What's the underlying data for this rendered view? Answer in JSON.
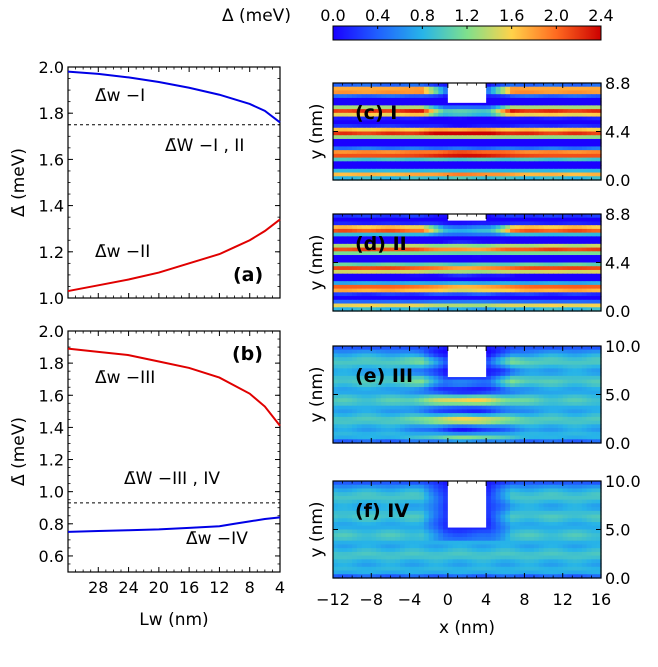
{
  "colors": {
    "blue": "#0000e6",
    "red": "#e00000",
    "colormap": [
      "#1a00ff",
      "#2060ff",
      "#27b4e8",
      "#7fe08c",
      "#ffd24a",
      "#ff6a20",
      "#cc0000"
    ]
  },
  "colorbar": {
    "label": "Δ (meV)",
    "ticks": [
      "0.0",
      "0.4",
      "0.8",
      "1.2",
      "1.6",
      "2.0",
      "2.4"
    ],
    "range": [
      0.0,
      2.4
    ]
  },
  "chart_data": [
    {
      "id": "a",
      "type": "line",
      "panel_label": "(a)",
      "ylabel": "Δ̄ (meV)",
      "xlim": [
        32,
        4
      ],
      "ylim": [
        1.0,
        2.0
      ],
      "yticks": [
        "1.0",
        "1.2",
        "1.4",
        "1.6",
        "1.8",
        "2.0"
      ],
      "ytick_values": [
        1.0,
        1.2,
        1.4,
        1.6,
        1.8,
        2.0
      ],
      "series": [
        {
          "name": "Δ̄w −I",
          "color": "blue",
          "x": [
            32,
            28,
            24,
            20,
            16,
            12,
            10,
            8,
            6,
            4
          ],
          "y": [
            1.98,
            1.97,
            1.955,
            1.935,
            1.91,
            1.88,
            1.86,
            1.84,
            1.81,
            1.76
          ]
        },
        {
          "name": "Δ̄w −II",
          "color": "red",
          "x": [
            32,
            28,
            24,
            20,
            16,
            12,
            10,
            8,
            6,
            4
          ],
          "y": [
            1.03,
            1.055,
            1.08,
            1.11,
            1.15,
            1.19,
            1.22,
            1.25,
            1.29,
            1.34
          ]
        },
        {
          "name": "Δ̄W −I , II",
          "style": "dashed",
          "color": "black",
          "x": [
            32,
            4
          ],
          "y": [
            1.75,
            1.75
          ]
        }
      ]
    },
    {
      "id": "b",
      "type": "line",
      "panel_label": "(b)",
      "xlabel": "Lw (nm)",
      "ylabel": "Δ̄ (meV)",
      "xlim": [
        32,
        4
      ],
      "ylim": [
        0.5,
        2.0
      ],
      "xticks": [
        "28",
        "24",
        "20",
        "16",
        "12",
        "8",
        "4"
      ],
      "xtick_values": [
        28,
        24,
        20,
        16,
        12,
        8,
        4
      ],
      "yticks": [
        "0.6",
        "0.8",
        "1.0",
        "1.2",
        "1.4",
        "1.6",
        "1.8",
        "2.0"
      ],
      "ytick_values": [
        0.6,
        0.8,
        1.0,
        1.2,
        1.4,
        1.6,
        1.8,
        2.0
      ],
      "series": [
        {
          "name": "Δ̄w −III",
          "color": "red",
          "x": [
            32,
            28,
            24,
            20,
            16,
            12,
            10,
            8,
            6,
            4
          ],
          "y": [
            1.89,
            1.87,
            1.85,
            1.81,
            1.77,
            1.71,
            1.66,
            1.61,
            1.53,
            1.41
          ]
        },
        {
          "name": "Δ̄w −IV",
          "color": "blue",
          "x": [
            32,
            28,
            24,
            20,
            16,
            12,
            10,
            8,
            6,
            4
          ],
          "y": [
            0.75,
            0.755,
            0.76,
            0.765,
            0.775,
            0.785,
            0.8,
            0.815,
            0.83,
            0.84
          ]
        },
        {
          "name": "Δ̄W −III , IV",
          "style": "dashed",
          "color": "black",
          "x": [
            32,
            4
          ],
          "y": [
            0.93,
            0.93
          ]
        }
      ]
    },
    {
      "id": "c",
      "type": "heatmap",
      "panel_label": "(c) I",
      "ylabel": "y (nm)",
      "ylim": [
        0,
        8.8
      ],
      "yticks": [
        "0.0",
        "4.4",
        "8.8"
      ],
      "ytick_values": [
        0.0,
        4.4,
        8.8
      ],
      "xlim": [
        -12,
        16
      ],
      "notch_x": [
        0,
        4
      ],
      "notch_y": 7.0,
      "base": 0.8,
      "stripe_amp": 1.4,
      "stripes": 4.5,
      "center_bump": 0.35
    },
    {
      "id": "d",
      "type": "heatmap",
      "panel_label": "(d) II",
      "ylabel": "y (nm)",
      "ylim": [
        0,
        8.8
      ],
      "yticks": [
        "0.0",
        "4.4",
        "8.8"
      ],
      "ytick_values": [
        0.0,
        4.4,
        8.8
      ],
      "xlim": [
        -12,
        16
      ],
      "notch_x": [
        0,
        4
      ],
      "notch_y": 8.2,
      "base": 0.8,
      "stripe_amp": 1.35,
      "stripes": 5,
      "center_bump": -0.45
    },
    {
      "id": "e",
      "type": "heatmap",
      "panel_label": "(e) III",
      "ylabel": "y (nm)",
      "ylim": [
        0,
        10.0
      ],
      "yticks": [
        "0.0",
        "5.0",
        "10.0"
      ],
      "ytick_values": [
        0.0,
        5.0,
        10.0
      ],
      "xlim": [
        -12,
        16
      ],
      "notch_x": [
        0,
        4
      ],
      "notch_y": 6.8,
      "base": 0.85,
      "stripe_amp": 0.12,
      "stripes": 5,
      "center_bump": 0.8
    },
    {
      "id": "f",
      "type": "heatmap",
      "panel_label": "(f) IV",
      "ylabel": "y (nm)",
      "xlabel": "x (nm)",
      "ylim": [
        0,
        10.0
      ],
      "yticks": [
        "0.0",
        "5.0",
        "10.0"
      ],
      "ytick_values": [
        0.0,
        5.0,
        10.0
      ],
      "xticks": [
        "−12",
        "−8",
        "−4",
        "0",
        "4",
        "8",
        "12",
        "16"
      ],
      "xtick_values": [
        -12,
        -8,
        -4,
        0,
        4,
        8,
        12,
        16
      ],
      "xlim": [
        -12,
        16
      ],
      "notch_x": [
        0,
        4
      ],
      "notch_y": 5.2,
      "base": 0.85,
      "stripe_amp": 0.1,
      "stripes": 5,
      "center_bump": 0.0
    }
  ]
}
